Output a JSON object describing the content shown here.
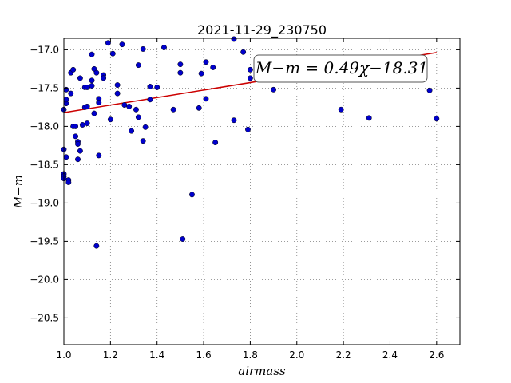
{
  "chart_data": {
    "type": "scatter",
    "title": "2021-11-29_230750",
    "xlabel": "airmass",
    "ylabel": "M−m",
    "xlim": [
      1.0,
      2.7
    ],
    "ylim": [
      -20.85,
      -16.85
    ],
    "y_inverted": true,
    "grid": true,
    "x_ticks": [
      1.0,
      1.2,
      1.4,
      1.6,
      1.8,
      2.0,
      2.2,
      2.4,
      2.6
    ],
    "x_tick_labels": [
      "1.0",
      "1.2",
      "1.4",
      "1.6",
      "1.8",
      "2.0",
      "2.2",
      "2.4",
      "2.6"
    ],
    "y_ticks": [
      -17.0,
      -17.5,
      -18.0,
      -18.5,
      -19.0,
      -19.5,
      -20.0,
      -20.5
    ],
    "y_tick_labels": [
      "−17.0",
      "−17.5",
      "−18.0",
      "−18.5",
      "−19.0",
      "−19.5",
      "−20.0",
      "−20.5"
    ],
    "annotation": "M−m = 0.49χ−18.31",
    "fit": {
      "slope": 0.49,
      "intercept": -18.31
    },
    "colors": {
      "points": "#0000cc",
      "fit_line": "#cc0000",
      "grid": "#7a7a7a"
    },
    "points": [
      [
        1.0,
        -17.78
      ],
      [
        1.0,
        -18.3
      ],
      [
        1.0,
        -18.62
      ],
      [
        1.0,
        -18.65
      ],
      [
        1.0,
        -18.68
      ],
      [
        1.01,
        -17.7
      ],
      [
        1.01,
        -17.65
      ],
      [
        1.01,
        -17.52
      ],
      [
        1.01,
        -18.4
      ],
      [
        1.02,
        -18.7
      ],
      [
        1.02,
        -18.73
      ],
      [
        1.03,
        -17.3
      ],
      [
        1.03,
        -17.57
      ],
      [
        1.04,
        -17.26
      ],
      [
        1.04,
        -18.0
      ],
      [
        1.05,
        -18.0
      ],
      [
        1.05,
        -18.13
      ],
      [
        1.06,
        -18.2
      ],
      [
        1.06,
        -18.23
      ],
      [
        1.06,
        -18.43
      ],
      [
        1.07,
        -17.37
      ],
      [
        1.07,
        -18.32
      ],
      [
        1.08,
        -17.98
      ],
      [
        1.09,
        -17.75
      ],
      [
        1.09,
        -17.49
      ],
      [
        1.1,
        -17.49
      ],
      [
        1.1,
        -17.74
      ],
      [
        1.1,
        -17.96
      ],
      [
        1.12,
        -17.4
      ],
      [
        1.12,
        -17.47
      ],
      [
        1.12,
        -17.06
      ],
      [
        1.13,
        -17.83
      ],
      [
        1.13,
        -17.25
      ],
      [
        1.14,
        -17.3
      ],
      [
        1.14,
        -19.56
      ],
      [
        1.15,
        -18.38
      ],
      [
        1.15,
        -17.64
      ],
      [
        1.15,
        -17.69
      ],
      [
        1.17,
        -17.33
      ],
      [
        1.17,
        -17.37
      ],
      [
        1.19,
        -16.91
      ],
      [
        1.2,
        -17.91
      ],
      [
        1.21,
        -17.05
      ],
      [
        1.23,
        -17.46
      ],
      [
        1.23,
        -17.57
      ],
      [
        1.25,
        -16.93
      ],
      [
        1.26,
        -17.72
      ],
      [
        1.28,
        -17.74
      ],
      [
        1.29,
        -18.06
      ],
      [
        1.31,
        -17.78
      ],
      [
        1.32,
        -17.2
      ],
      [
        1.32,
        -17.88
      ],
      [
        1.34,
        -16.99
      ],
      [
        1.34,
        -18.19
      ],
      [
        1.35,
        -18.01
      ],
      [
        1.37,
        -17.48
      ],
      [
        1.37,
        -17.65
      ],
      [
        1.4,
        -17.49
      ],
      [
        1.43,
        -16.97
      ],
      [
        1.47,
        -17.78
      ],
      [
        1.5,
        -17.19
      ],
      [
        1.5,
        -17.3
      ],
      [
        1.51,
        -19.47
      ],
      [
        1.55,
        -18.89
      ],
      [
        1.58,
        -17.76
      ],
      [
        1.59,
        -17.31
      ],
      [
        1.61,
        -17.16
      ],
      [
        1.61,
        -17.64
      ],
      [
        1.64,
        -17.23
      ],
      [
        1.65,
        -18.21
      ],
      [
        1.73,
        -16.86
      ],
      [
        1.73,
        -17.92
      ],
      [
        1.77,
        -17.03
      ],
      [
        1.79,
        -18.04
      ],
      [
        1.8,
        -17.26
      ],
      [
        1.8,
        -17.37
      ],
      [
        1.9,
        -17.52
      ],
      [
        2.19,
        -17.78
      ],
      [
        2.31,
        -17.89
      ],
      [
        2.57,
        -17.53
      ],
      [
        2.6,
        -17.9
      ]
    ]
  }
}
